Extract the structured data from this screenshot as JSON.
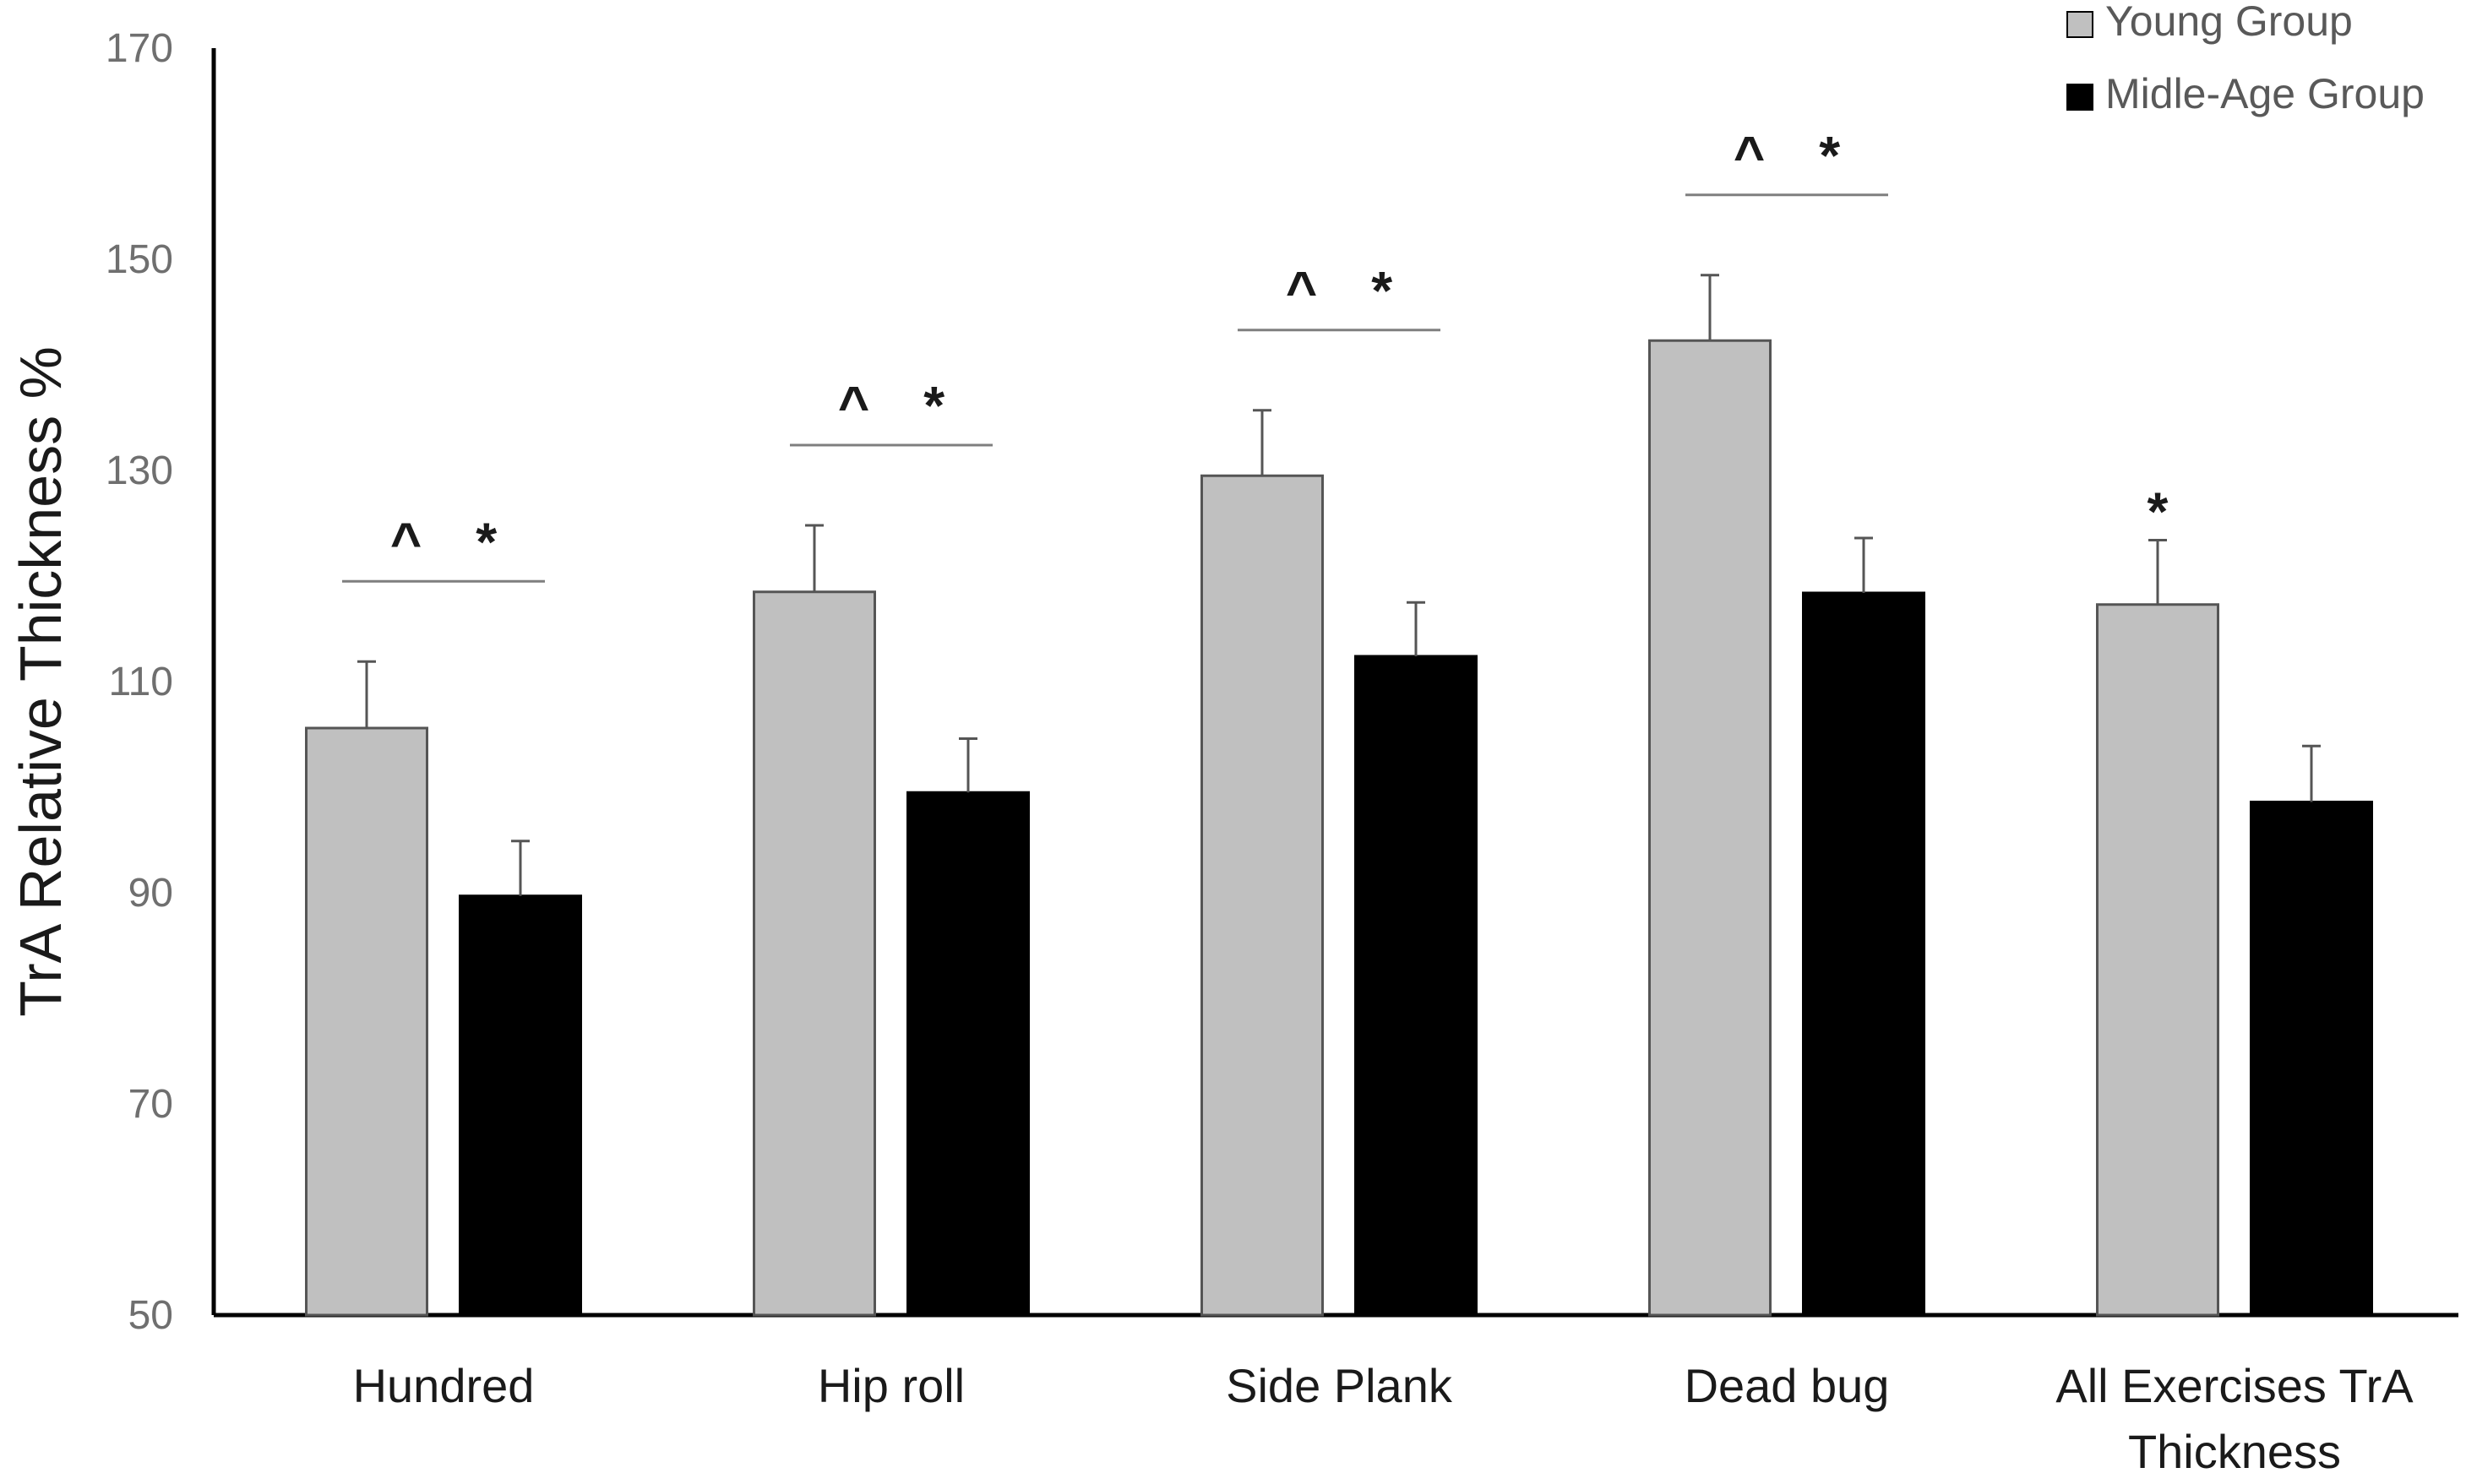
{
  "chart_data": {
    "type": "bar",
    "title": "",
    "xlabel": "",
    "ylabel": "TrA Relative Thickness %",
    "ylim": [
      50,
      170
    ],
    "yticks": [
      50,
      70,
      90,
      110,
      130,
      150,
      170
    ],
    "categories": [
      [
        "Hundred"
      ],
      [
        "Hip roll"
      ],
      [
        "Side Plank"
      ],
      [
        "Dead bug"
      ],
      [
        "All Exercises TrA",
        "Thickness"
      ]
    ],
    "series": [
      {
        "name": "Young Group",
        "color": "#c0c0c0",
        "values": [
          105.6,
          118.5,
          129.5,
          142.3,
          117.3
        ],
        "errors": [
          6.3,
          6.3,
          6.2,
          6.2,
          6.1
        ]
      },
      {
        "name": "Midle-Age Group",
        "color": "#000000",
        "values": [
          89.7,
          99.5,
          112.4,
          118.4,
          98.6
        ],
        "errors": [
          5.2,
          5.1,
          5.1,
          5.2,
          5.3
        ]
      }
    ],
    "significance": [
      {
        "category": 0,
        "text": "^ *",
        "bracket": true
      },
      {
        "category": 1,
        "text": "^ *",
        "bracket": true
      },
      {
        "category": 2,
        "text": "^ *",
        "bracket": true
      },
      {
        "category": 3,
        "text": "^ *",
        "bracket": true
      },
      {
        "category": 4,
        "text": "*",
        "bracket": false
      }
    ],
    "legend_position": "top-right",
    "grid": false
  }
}
